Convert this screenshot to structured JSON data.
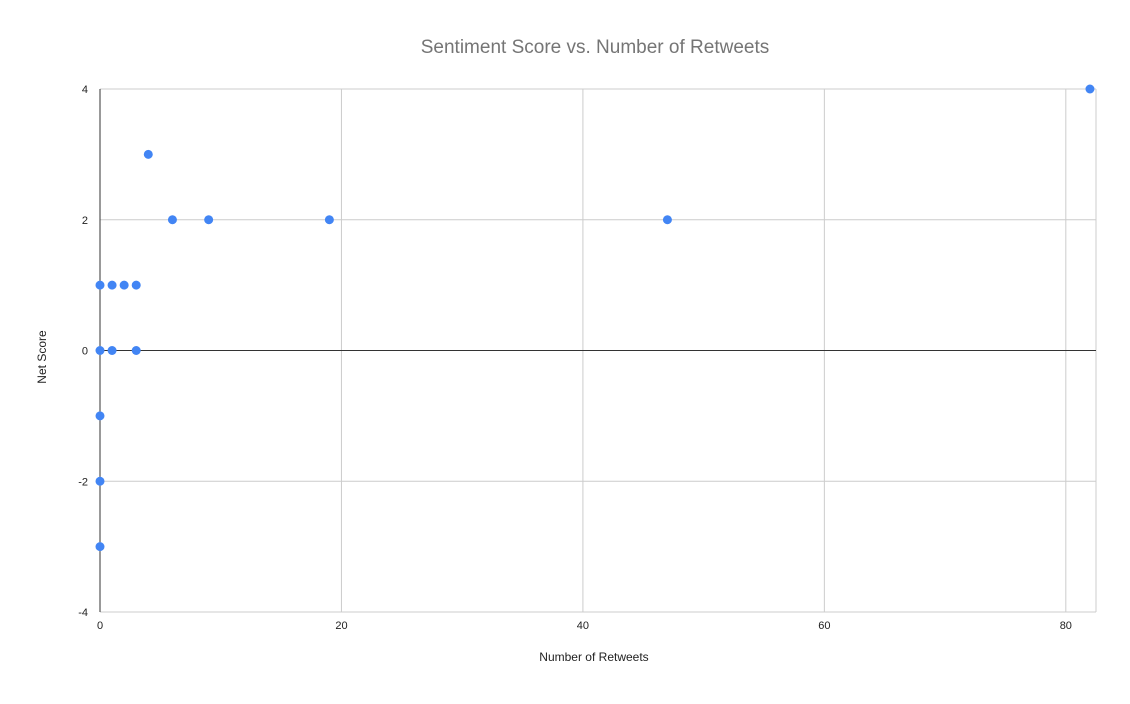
{
  "chart_data": {
    "type": "scatter",
    "title": "Sentiment Score vs. Number of Retweets",
    "xlabel": "Number of Retweets",
    "ylabel": "Net Score",
    "xlim": [
      0,
      82.5
    ],
    "ylim": [
      -4,
      4
    ],
    "x_ticks": [
      0,
      20,
      40,
      60,
      80
    ],
    "y_ticks": [
      -4,
      -2,
      0,
      2,
      4
    ],
    "grid": true,
    "legend": "none",
    "marker_color": "#4285f4",
    "series": [
      {
        "points": [
          {
            "x": 0,
            "y": 1
          },
          {
            "x": 1,
            "y": 1
          },
          {
            "x": 2,
            "y": 1
          },
          {
            "x": 3,
            "y": 1
          },
          {
            "x": 0,
            "y": 0
          },
          {
            "x": 1,
            "y": 0
          },
          {
            "x": 3,
            "y": 0
          },
          {
            "x": 0,
            "y": -1
          },
          {
            "x": 0,
            "y": -2
          },
          {
            "x": 0,
            "y": -3
          },
          {
            "x": 4,
            "y": 3
          },
          {
            "x": 6,
            "y": 2
          },
          {
            "x": 9,
            "y": 2
          },
          {
            "x": 19,
            "y": 2
          },
          {
            "x": 47,
            "y": 2
          },
          {
            "x": 82,
            "y": 4
          }
        ]
      }
    ]
  }
}
